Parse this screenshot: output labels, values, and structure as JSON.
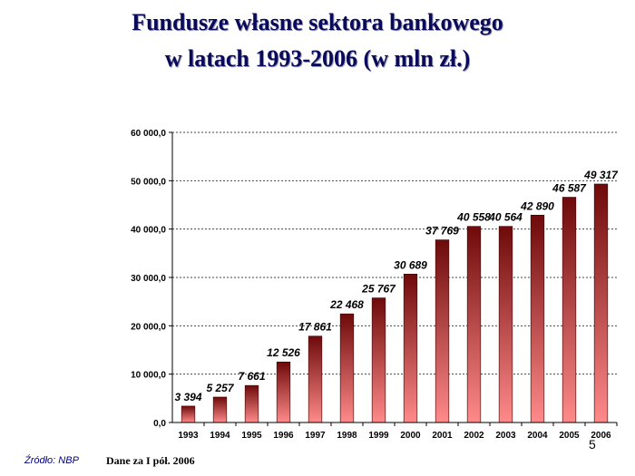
{
  "title_line1": "Fundusze własne sektora bankowego",
  "title_line2": "w latach 1993-2006 (w mln zł.)",
  "source": "Źródło: NBP",
  "note": "Dane za I pół. 2006",
  "page_number": "5",
  "colors": {
    "bar_top": "#6e0a0a",
    "bar_bottom": "#ff8a8a",
    "title": "#0a0a5a"
  },
  "chart_data": {
    "type": "bar",
    "categories": [
      "1993",
      "1994",
      "1995",
      "1996",
      "1997",
      "1998",
      "1999",
      "2000",
      "2001",
      "2002",
      "2003",
      "2004",
      "2005",
      "2006"
    ],
    "values": [
      3394,
      5257,
      7661,
      12526,
      17861,
      22468,
      25767,
      30689,
      37769,
      40558,
      40564,
      42890,
      46587,
      49317
    ],
    "data_labels": [
      "3 394",
      "5 257",
      "7 661",
      "12 526",
      "17 861",
      "22 468",
      "25 767",
      "30 689",
      "37 769",
      "40 558",
      "40 564",
      "42 890",
      "46 587",
      "49 317"
    ],
    "yticks": [
      0,
      10000,
      20000,
      30000,
      40000,
      50000,
      60000
    ],
    "ytick_labels": [
      "0,0",
      "10 000,0",
      "20 000,0",
      "30 000,0",
      "40 000,0",
      "50 000,0",
      "60 000,0"
    ],
    "ylim": [
      0,
      60000
    ],
    "grid": true,
    "title": "",
    "xlabel": "",
    "ylabel": ""
  }
}
